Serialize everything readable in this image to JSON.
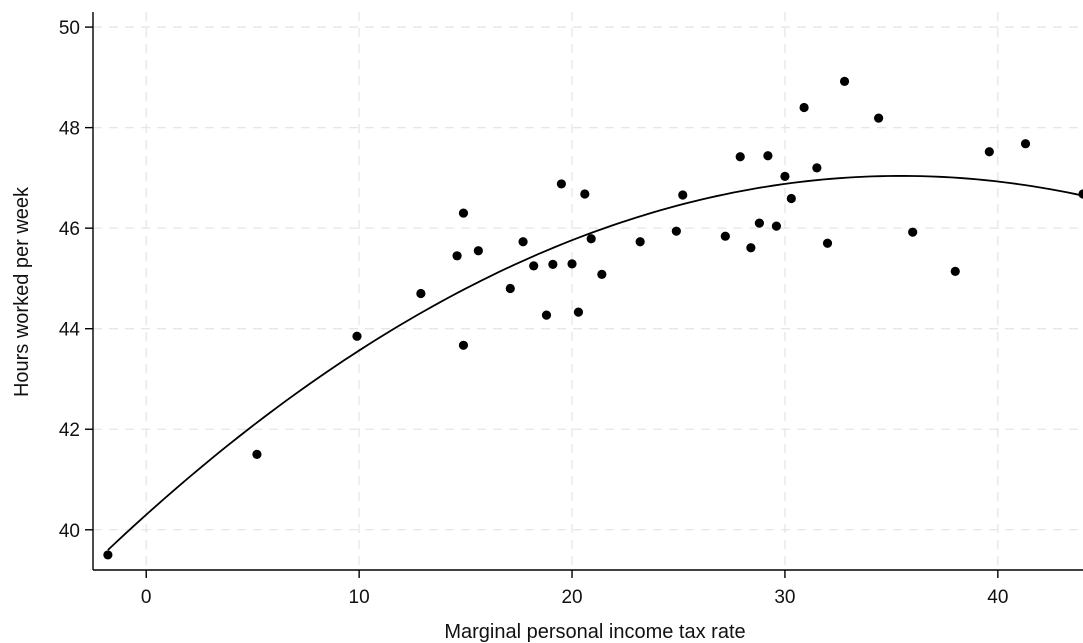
{
  "chart_data": {
    "type": "scatter",
    "xlabel": "Marginal personal income tax rate",
    "ylabel": "Hours worked per week",
    "xlim": [
      -2.5,
      44
    ],
    "ylim": [
      39.2,
      50.3
    ],
    "x_ticks": [
      0,
      10,
      20,
      30,
      40
    ],
    "y_ticks": [
      40,
      42,
      44,
      46,
      48,
      50
    ],
    "grid": true,
    "legend": "none",
    "colors": {
      "points": "#000000",
      "fit_line": "#000000",
      "grid": "#e6e6e6",
      "axis": "#000000"
    },
    "series": [
      {
        "type": "scatter",
        "points": [
          [
            -1.8,
            39.5
          ],
          [
            5.2,
            41.5
          ],
          [
            9.9,
            43.85
          ],
          [
            12.9,
            44.7
          ],
          [
            14.6,
            45.45
          ],
          [
            14.9,
            43.67
          ],
          [
            14.9,
            46.3
          ],
          [
            15.6,
            45.55
          ],
          [
            17.1,
            44.8
          ],
          [
            17.7,
            45.73
          ],
          [
            18.2,
            45.25
          ],
          [
            18.8,
            44.27
          ],
          [
            19.1,
            45.28
          ],
          [
            19.5,
            46.88
          ],
          [
            20.0,
            45.29
          ],
          [
            20.3,
            44.33
          ],
          [
            20.6,
            46.68
          ],
          [
            20.9,
            45.79
          ],
          [
            21.4,
            45.08
          ],
          [
            23.2,
            45.73
          ],
          [
            24.9,
            45.94
          ],
          [
            25.2,
            46.66
          ],
          [
            27.2,
            45.84
          ],
          [
            27.9,
            47.42
          ],
          [
            28.4,
            45.61
          ],
          [
            28.8,
            46.1
          ],
          [
            29.2,
            47.44
          ],
          [
            29.6,
            46.04
          ],
          [
            30.0,
            47.03
          ],
          [
            30.3,
            46.59
          ],
          [
            30.9,
            48.4
          ],
          [
            31.5,
            47.2
          ],
          [
            32.0,
            45.7
          ],
          [
            32.8,
            48.92
          ],
          [
            34.4,
            48.19
          ],
          [
            36.0,
            45.92
          ],
          [
            38.0,
            45.14
          ],
          [
            39.6,
            47.52
          ],
          [
            41.3,
            47.68
          ],
          [
            44.0,
            46.68
          ]
        ]
      },
      {
        "type": "line",
        "fit": "quadratic",
        "coefficients": [
          40.3,
          0.3803,
          -0.005365
        ]
      }
    ]
  }
}
